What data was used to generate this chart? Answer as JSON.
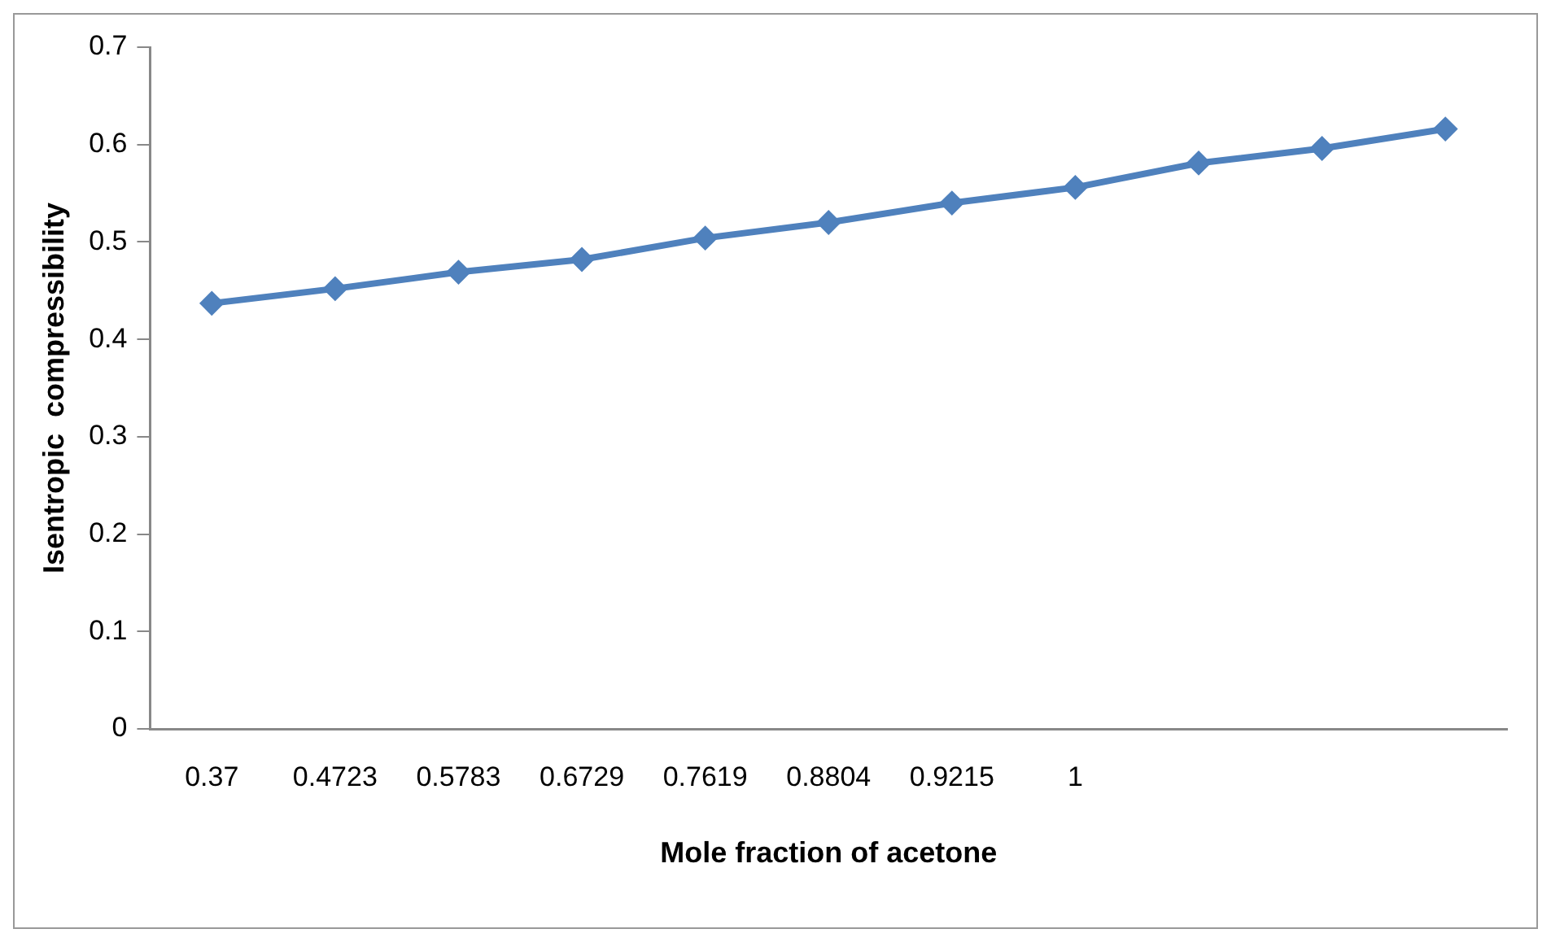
{
  "chart_data": {
    "type": "line",
    "xlabel": "Mole fraction of acetone",
    "ylabel": "Isentropic  compressibility",
    "categories": [
      "0.37",
      "0.4723",
      "0.5783",
      "0.6729",
      "0.7619",
      "0.8804",
      "0.9215",
      "1",
      null,
      null,
      null
    ],
    "series": [
      {
        "color": "#4f81bd",
        "values": [
          0.437,
          0.452,
          0.469,
          0.482,
          0.504,
          0.52,
          0.54,
          0.556,
          0.581,
          0.596,
          0.616
        ]
      }
    ],
    "ylim": [
      0,
      0.7
    ],
    "yticks": [
      0,
      0.1,
      0.2,
      0.3,
      0.4,
      0.5,
      0.6,
      0.7
    ],
    "grid": false,
    "legend": false,
    "marker": "diamond",
    "line_style": "solid"
  }
}
